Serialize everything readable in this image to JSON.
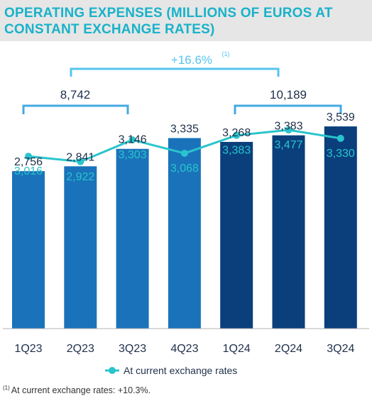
{
  "title": "OPERATING EXPENSES (MILLIONS OF EUROS AT CONSTANT EXCHANGE RATES)",
  "colors": {
    "bar_2023": "#1a73ba",
    "bar_2024": "#0a3f7c",
    "line": "#29c4cc",
    "bracket_total": "#45a9e3",
    "bracket_growth": "#56c4ef",
    "axis": "#b0b0b0",
    "text_dark": "#1f2f4a",
    "growth_text": "#56c4ef"
  },
  "annotations": {
    "growth_label": "+16.6%",
    "growth_footnote_marker": "(1)",
    "total_2023": "8,742",
    "total_2024": "10,189"
  },
  "footnote": {
    "marker": "(1)",
    "text": "At current exchange rates: +10.3%."
  },
  "chart_data": {
    "type": "bar",
    "categories": [
      "1Q23",
      "2Q23",
      "3Q23",
      "4Q23",
      "1Q24",
      "2Q24",
      "3Q24"
    ],
    "series": [
      {
        "values": [
          2756,
          2841,
          3146,
          3335,
          3268,
          3383,
          3539
        ],
        "labels": [
          "2,756",
          "2,841",
          "3,146",
          "3,335",
          "3,268",
          "3,383",
          "3,539"
        ]
      },
      {
        "name": "At current exchange rates",
        "type": "line",
        "values": [
          3016,
          2922,
          3303,
          3068,
          3383,
          3477,
          3330
        ],
        "labels": [
          "3,016",
          "2,922",
          "3,303",
          "3,068",
          "3,383",
          "3,477",
          "3,330"
        ]
      }
    ],
    "legend": {
      "position": "bottom",
      "entries": [
        "At current exchange rates"
      ]
    }
  }
}
